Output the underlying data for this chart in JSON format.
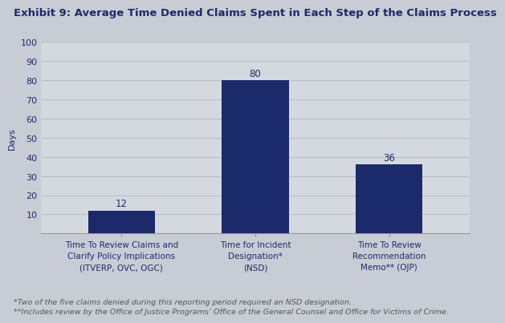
{
  "title": "Exhibit 9: Average Time Denied Claims Spent in Each Step of the Claims Process",
  "categories": [
    "Time To Review Claims and\nClarify Policy Implications\n(ITVERP, OVC, OGC)",
    "Time for Incident\nDesignation*\n(NSD)",
    "Time To Review\nRecommendation\nMemo** (OJP)"
  ],
  "values": [
    12,
    80,
    36
  ],
  "bar_color": "#1b2a6b",
  "ylabel": "Days",
  "ylim": [
    0,
    100
  ],
  "yticks": [
    0,
    10,
    20,
    30,
    40,
    50,
    60,
    70,
    80,
    90,
    100
  ],
  "ytick_labels": [
    "",
    "10",
    "20",
    "30",
    "40",
    "50",
    "60",
    "70",
    "80",
    "90",
    "100"
  ],
  "footnote1": "*Two of the five claims denied during this reporting period required an NSD designation.",
  "footnote2": "**Includes review by the Office of Justice Programs’ Office of the General Counsel and Office for Victims of Crime.",
  "background_color_edge": "#c8cdd5",
  "background_color_center": "#dde0e6",
  "plot_background_color": "#d4d8df",
  "title_color": "#1b2a6b",
  "axis_color": "#1b2a6b",
  "footnote_color": "#555555",
  "title_fontsize": 9.5,
  "label_fontsize": 7.5,
  "tick_fontsize": 8,
  "value_fontsize": 8.5,
  "footnote_fontsize": 6.8,
  "ylabel_fontsize": 8,
  "bar_positions": [
    0,
    1,
    2
  ],
  "bar_width": 0.5
}
